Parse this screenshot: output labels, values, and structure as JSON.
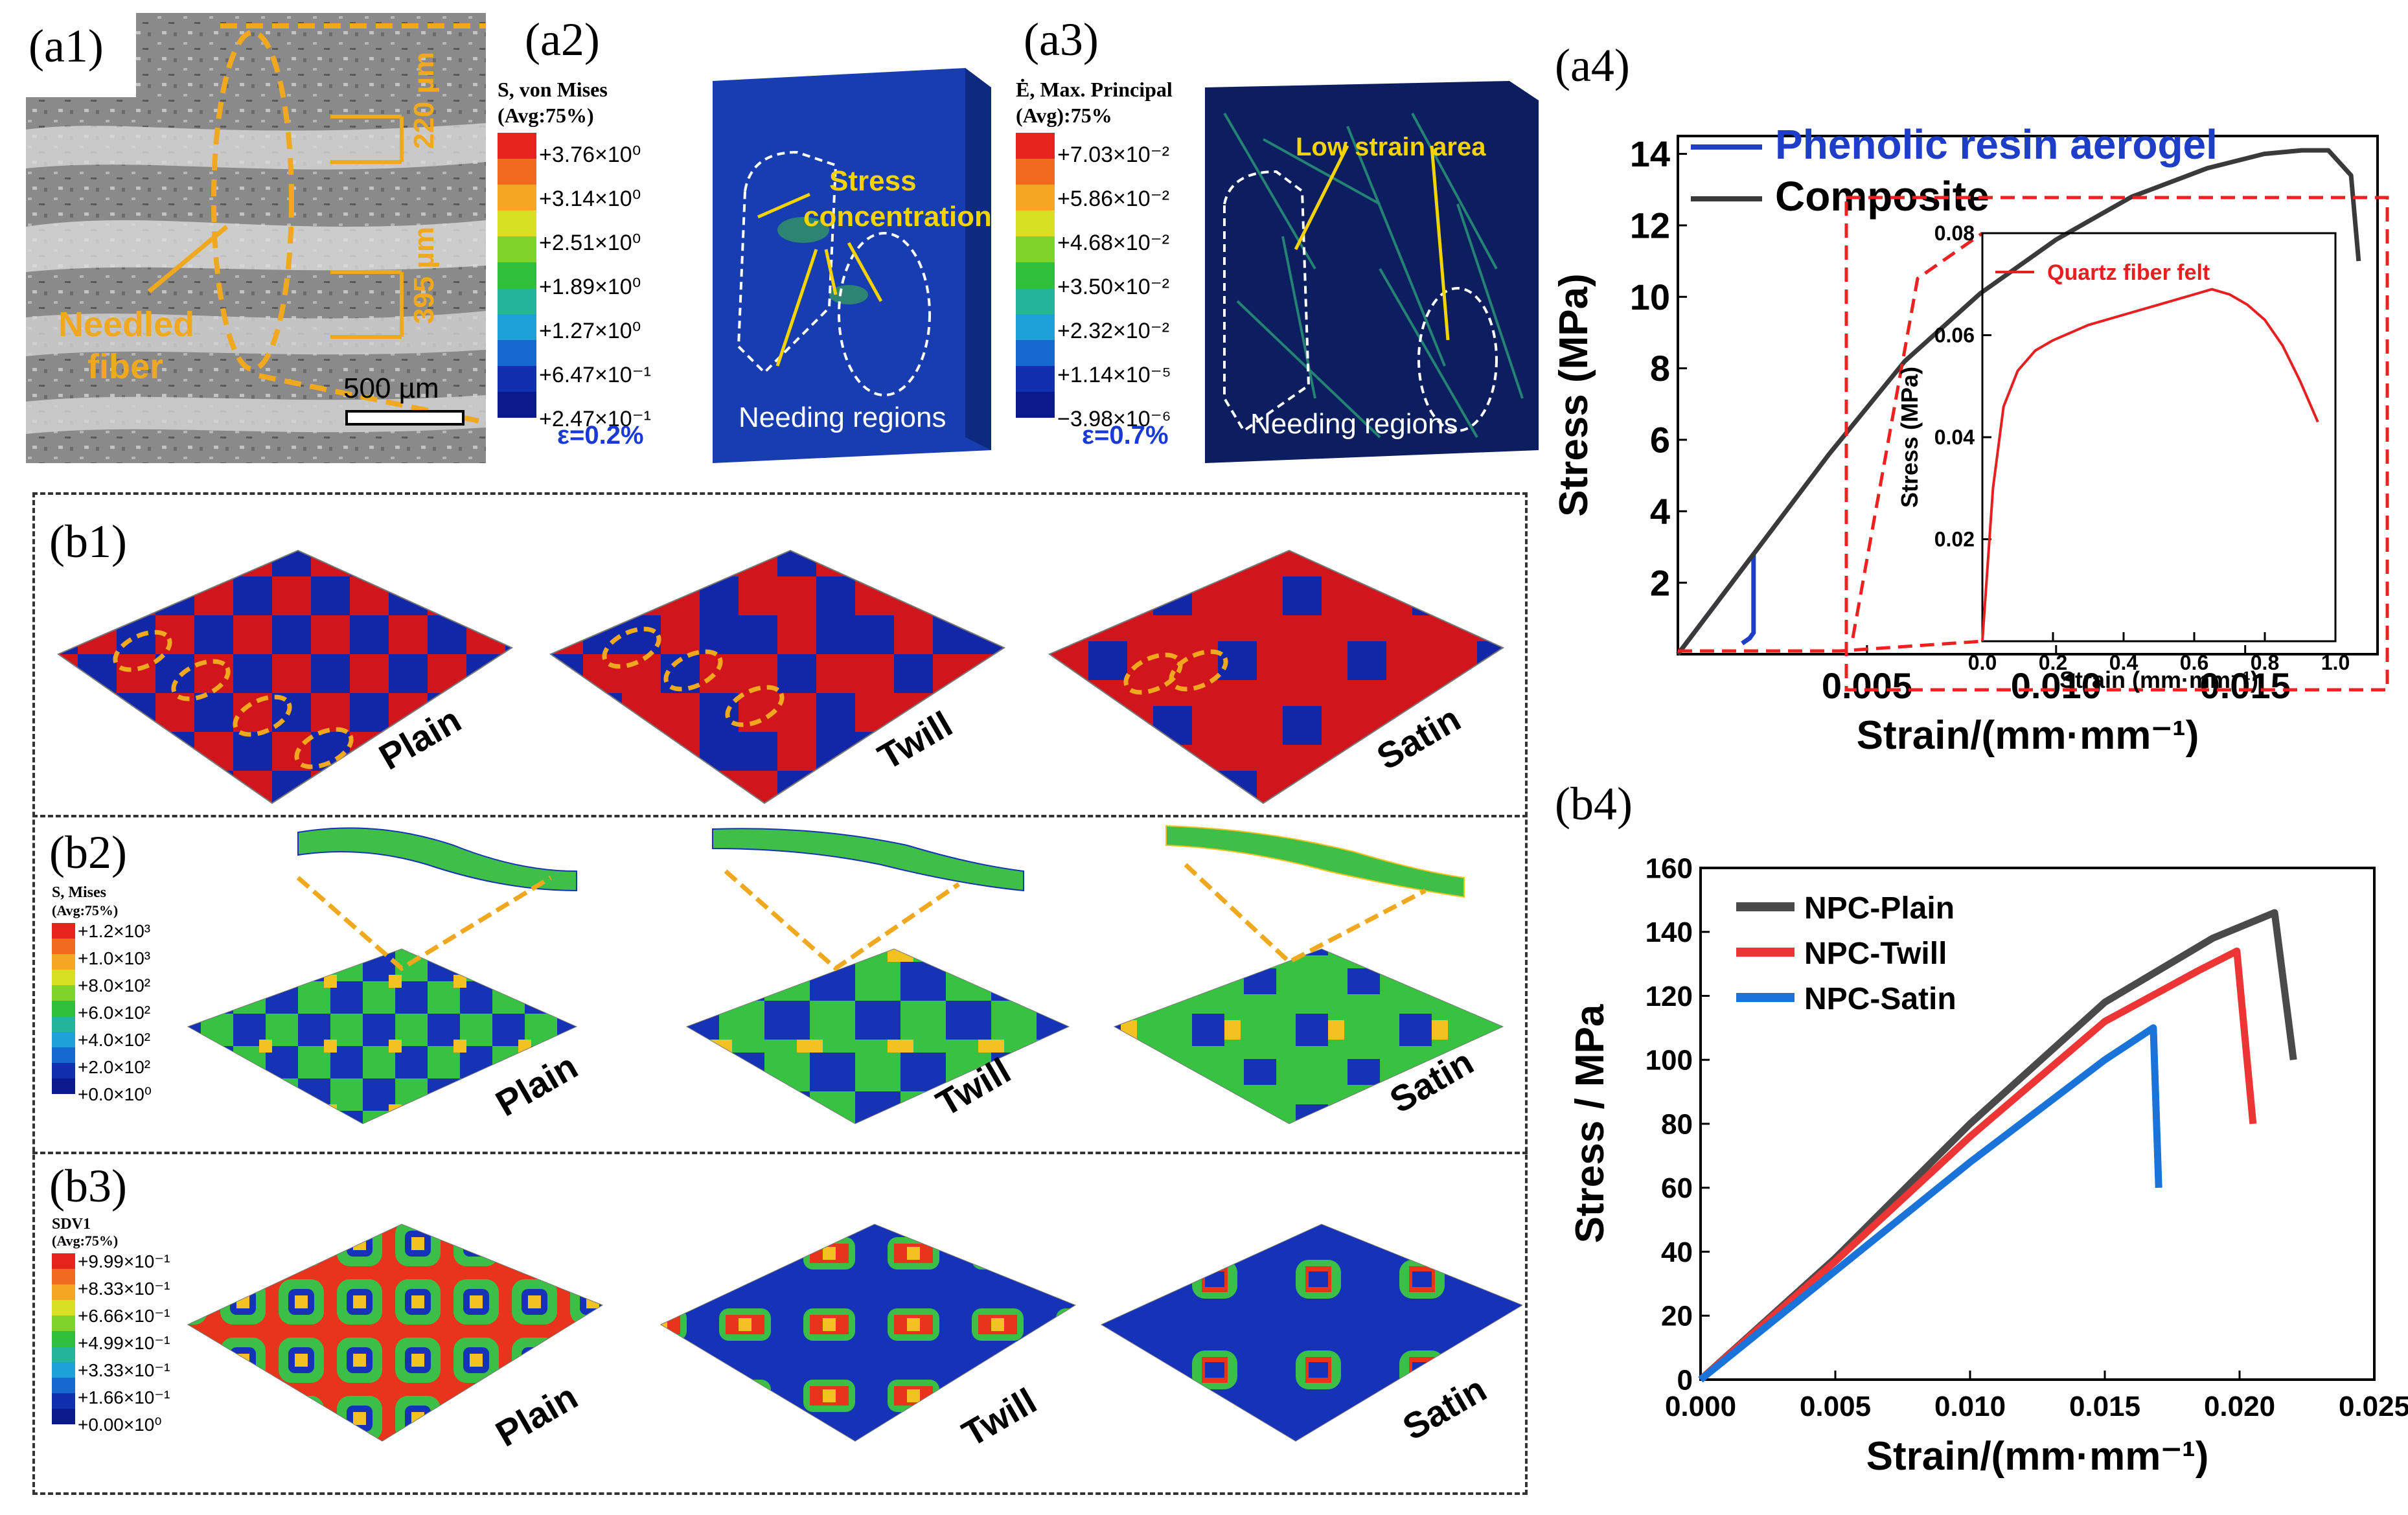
{
  "panels": {
    "a1": {
      "label": "(a1)",
      "dim1": "220 µm",
      "dim2": "395 µm",
      "scale": "500 µm",
      "needled": "Needled",
      "fiber": "fiber"
    },
    "a2": {
      "label": "(a2)",
      "legend_title1": "S, von Mises",
      "legend_title2": "(Avg:75%)",
      "legend": [
        "+3.76×10⁰",
        "+3.14×10⁰",
        "+2.51×10⁰",
        "+1.89×10⁰",
        "+1.27×10⁰",
        "+6.47×10⁻¹",
        "+2.47×10⁻¹"
      ],
      "strain": "ε=0.2%",
      "annot1": "Stress",
      "annot2": "concentration",
      "region": "Needing regions"
    },
    "a3": {
      "label": "(a3)",
      "legend_title1": "Ė, Max. Principal",
      "legend_title2": "(Avg):75%",
      "legend": [
        "+7.03×10⁻²",
        "+5.86×10⁻²",
        "+4.68×10⁻²",
        "+3.50×10⁻²",
        "+2.32×10⁻²",
        "+1.14×10⁻⁵",
        "−3.98×10⁻⁶"
      ],
      "strain": "ε=0.7%",
      "annot": "Low strain area",
      "region": "Needing regions"
    },
    "b1": {
      "label": "(b1)",
      "names": [
        "Plain",
        "Twill",
        "Satin"
      ]
    },
    "b2": {
      "label": "(b2)",
      "legend_title1": "S, Mises",
      "legend_title2": "(Avg:75%)",
      "legend": [
        "+1.2×10³",
        "+1.0×10³",
        "+8.0×10²",
        "+6.0×10²",
        "+4.0×10²",
        "+2.0×10²",
        "+0.0×10⁰"
      ],
      "names": [
        "Plain",
        "Twill",
        "Satin"
      ]
    },
    "b3": {
      "label": "(b3)",
      "legend_title1": "SDV1",
      "legend_title2": "(Avg:75%)",
      "legend": [
        "+9.99×10⁻¹",
        "+8.33×10⁻¹",
        "+6.66×10⁻¹",
        "+4.99×10⁻¹",
        "+3.33×10⁻¹",
        "+1.66×10⁻¹",
        "+0.00×10⁰"
      ],
      "names": [
        "Plain",
        "Twill",
        "Satin"
      ]
    },
    "a4": {
      "label": "(a4)",
      "inset_legend": "Quartz fiber felt",
      "inset_xlabel": "Strain (mm·mm⁻¹)",
      "inset_ylabel": "Stress (MPa)"
    },
    "b4": {
      "label": "(b4)"
    }
  },
  "chart_data": [
    {
      "id": "a4",
      "type": "line",
      "xlabel": "Strain/(mm·mm⁻¹)",
      "ylabel": "Stress (MPa)",
      "xlim": [
        0,
        0.0185
      ],
      "ylim": [
        0,
        14.5
      ],
      "xticks": [
        "0.005",
        "0.010",
        "0.015"
      ],
      "yticks": [
        "2",
        "4",
        "6",
        "8",
        "10",
        "12",
        "14"
      ],
      "series": [
        {
          "name": "Phenolic resin aerogel",
          "color": "#1f3ec8",
          "x": [
            0,
            0.0005,
            0.001,
            0.0015,
            0.002,
            0.002,
            0.0019,
            0.0017
          ],
          "y": [
            0,
            0.7,
            1.4,
            2.1,
            2.8,
            0.6,
            0.45,
            0.3
          ]
        },
        {
          "name": "Composite",
          "color": "#3a3a3a",
          "x": [
            0,
            0.002,
            0.004,
            0.006,
            0.008,
            0.01,
            0.012,
            0.014,
            0.0155,
            0.0165,
            0.0172,
            0.0178,
            0.018
          ],
          "y": [
            0,
            2.8,
            5.6,
            8.2,
            10.1,
            11.6,
            12.8,
            13.6,
            14.0,
            14.1,
            14.1,
            13.4,
            11.0
          ]
        }
      ]
    },
    {
      "id": "a4-inset",
      "type": "line",
      "xlabel": "Strain (mm·mm⁻¹)",
      "ylabel": "Stress (MPa)",
      "xlim": [
        0,
        1.0
      ],
      "ylim": [
        0,
        0.08
      ],
      "xticks": [
        "0.0",
        "0.2",
        "0.4",
        "0.6",
        "0.8",
        "1.0"
      ],
      "yticks": [
        "0.02",
        "0.04",
        "0.06",
        "0.08"
      ],
      "series": [
        {
          "name": "Quartz fiber felt",
          "color": "#e62020",
          "x": [
            0,
            0.03,
            0.06,
            0.1,
            0.15,
            0.2,
            0.3,
            0.4,
            0.5,
            0.6,
            0.65,
            0.7,
            0.75,
            0.8,
            0.85,
            0.9,
            0.95
          ],
          "y": [
            0,
            0.03,
            0.046,
            0.053,
            0.057,
            0.059,
            0.062,
            0.064,
            0.066,
            0.068,
            0.069,
            0.068,
            0.066,
            0.063,
            0.058,
            0.051,
            0.043
          ]
        }
      ]
    },
    {
      "id": "b4",
      "type": "line",
      "xlabel": "Strain/(mm·mm⁻¹)",
      "ylabel": "Stress / MPa",
      "xlim": [
        0,
        0.025
      ],
      "ylim": [
        0,
        160
      ],
      "xticks": [
        "0.000",
        "0.005",
        "0.010",
        "0.015",
        "0.020",
        "0.025"
      ],
      "yticks": [
        "0",
        "20",
        "40",
        "60",
        "80",
        "100",
        "120",
        "140",
        "160"
      ],
      "series": [
        {
          "name": "NPC-Plain",
          "color": "#4a4a4a",
          "x": [
            0,
            0.005,
            0.01,
            0.015,
            0.019,
            0.0213,
            0.022
          ],
          "y": [
            0,
            38,
            80,
            118,
            138,
            146,
            100
          ]
        },
        {
          "name": "NPC-Twill",
          "color": "#ee3535",
          "x": [
            0,
            0.005,
            0.01,
            0.015,
            0.0185,
            0.0199,
            0.0205
          ],
          "y": [
            0,
            37,
            76,
            112,
            128,
            134,
            80
          ]
        },
        {
          "name": "NPC-Satin",
          "color": "#1a73d9",
          "x": [
            0,
            0.005,
            0.01,
            0.015,
            0.0168,
            0.017
          ],
          "y": [
            0,
            34,
            68,
            100,
            110,
            60
          ]
        }
      ]
    }
  ]
}
